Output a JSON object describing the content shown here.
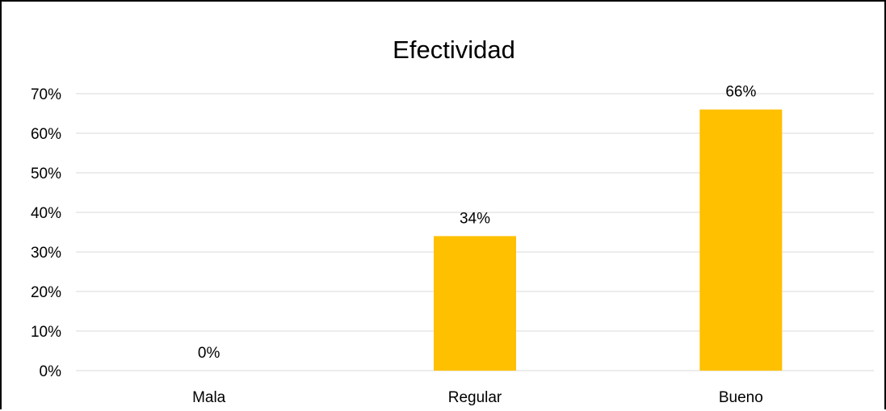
{
  "chart_data": {
    "type": "bar",
    "title": "Efectividad",
    "categories": [
      "Mala",
      "Regular",
      "Bueno"
    ],
    "values": [
      0,
      34,
      66
    ],
    "data_labels": [
      "0%",
      "34%",
      "66%"
    ],
    "ylim": [
      0,
      70
    ],
    "yticks": [
      0,
      10,
      20,
      30,
      40,
      50,
      60,
      70
    ],
    "ytick_labels": [
      "0%",
      "10%",
      "20%",
      "30%",
      "40%",
      "50%",
      "60%",
      "70%"
    ],
    "grid": true,
    "legend": "none",
    "bar_color": "#FFC000",
    "grid_color": "#D9D9D9"
  }
}
